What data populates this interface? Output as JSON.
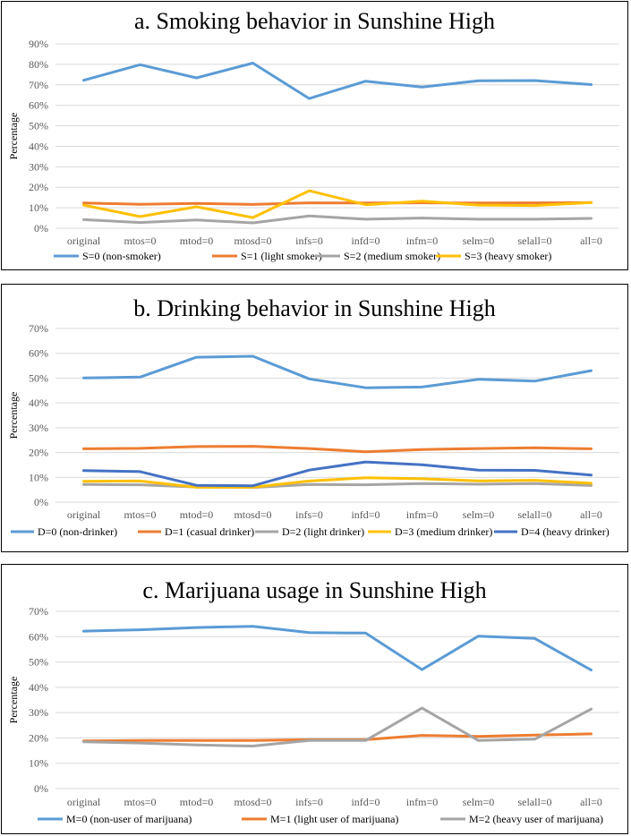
{
  "chart_data": [
    {
      "type": "line",
      "title": "a. Smoking behavior in Sunshine High",
      "xlabel": "",
      "ylabel": "Percentage",
      "ylim": [
        0,
        90
      ],
      "yticks": [
        "0%",
        "10%",
        "20%",
        "30%",
        "40%",
        "50%",
        "60%",
        "70%",
        "80%",
        "90%"
      ],
      "grid": true,
      "legend": "bottom",
      "categories": [
        "original",
        "mtos=0",
        "mtod=0",
        "mtosd=0",
        "infs=0",
        "infd=0",
        "infm=0",
        "selm=0",
        "selall=0",
        "all=0"
      ],
      "series": [
        {
          "name": "S=0 (non-smoker)",
          "color": "#5B9BD5",
          "values": [
            72.2,
            79.8,
            73.4,
            80.6,
            63.3,
            71.8,
            68.9,
            72.0,
            72.1,
            70.1
          ]
        },
        {
          "name": "S=1 (light smoker)",
          "color": "#ED7D31",
          "values": [
            12.3,
            11.7,
            12.1,
            11.6,
            12.4,
            12.3,
            12.4,
            12.3,
            12.4,
            12.5
          ]
        },
        {
          "name": "S=2 (medium smoker)",
          "color": "#A5A5A5",
          "values": [
            4.2,
            2.8,
            4.0,
            2.6,
            6.0,
            4.4,
            5.0,
            4.4,
            4.4,
            4.8
          ]
        },
        {
          "name": "S=3 (heavy smoker)",
          "color": "#FFC000",
          "values": [
            11.3,
            5.7,
            10.5,
            5.2,
            18.3,
            11.5,
            13.2,
            11.3,
            11.1,
            12.6
          ]
        }
      ]
    },
    {
      "type": "line",
      "title": "b. Drinking behavior in Sunshine High",
      "xlabel": "",
      "ylabel": "Percentage",
      "ylim": [
        0,
        70
      ],
      "yticks": [
        "0%",
        "10%",
        "20%",
        "30%",
        "40%",
        "50%",
        "60%",
        "70%"
      ],
      "grid": true,
      "legend": "bottom",
      "categories": [
        "original",
        "mtos=0",
        "mtod=0",
        "mtosd=0",
        "infs=0",
        "infd=0",
        "infm=0",
        "selm=0",
        "selall=0",
        "all=0"
      ],
      "series": [
        {
          "name": "D=0 (non-drinker)",
          "color": "#5B9BD5",
          "values": [
            50.1,
            50.4,
            58.4,
            58.8,
            49.7,
            46.1,
            46.4,
            49.5,
            48.8,
            53.0
          ]
        },
        {
          "name": "D=1 (casual drinker)",
          "color": "#ED7D31",
          "values": [
            21.5,
            21.7,
            22.4,
            22.5,
            21.6,
            20.3,
            21.2,
            21.6,
            21.9,
            21.5
          ]
        },
        {
          "name": "D=2 (light drinker)",
          "color": "#A5A5A5",
          "values": [
            7.1,
            7.0,
            6.1,
            5.9,
            7.1,
            7.0,
            7.5,
            7.2,
            7.5,
            6.7
          ]
        },
        {
          "name": "D=3 (medium drinker)",
          "color": "#FFC000",
          "values": [
            8.4,
            8.5,
            6.0,
            6.0,
            8.5,
            9.8,
            9.4,
            8.6,
            8.8,
            7.6
          ]
        },
        {
          "name": "D=4 (heavy drinker)",
          "color": "#4472C4",
          "values": [
            12.7,
            12.3,
            6.8,
            6.6,
            12.9,
            16.2,
            15.1,
            12.9,
            12.8,
            10.9
          ]
        }
      ]
    },
    {
      "type": "line",
      "title": "c. Marijuana usage in Sunshine High",
      "xlabel": "",
      "ylabel": "Percentage",
      "ylim": [
        0,
        70
      ],
      "yticks": [
        "0%",
        "10%",
        "20%",
        "30%",
        "40%",
        "50%",
        "60%",
        "70%"
      ],
      "grid": true,
      "legend": "bottom",
      "categories": [
        "original",
        "mtos=0",
        "mtod=0",
        "mtosd=0",
        "infs=0",
        "infd=0",
        "infm=0",
        "selm=0",
        "selall=0",
        "all=0"
      ],
      "series": [
        {
          "name": "M=0 (non-user of marijuana)",
          "color": "#5B9BD5",
          "values": [
            62.2,
            62.7,
            63.6,
            64.1,
            61.6,
            61.4,
            47.0,
            60.2,
            59.3,
            46.8
          ]
        },
        {
          "name": "M=1 (light user of marijuana)",
          "color": "#ED7D31",
          "values": [
            18.8,
            19.0,
            19.0,
            19.0,
            19.3,
            19.3,
            21.0,
            20.6,
            21.1,
            21.6
          ]
        },
        {
          "name": "M=2 (heavy user of marijuana)",
          "color": "#A5A5A5",
          "values": [
            18.5,
            18.0,
            17.2,
            16.8,
            19.0,
            19.0,
            31.8,
            19.0,
            19.5,
            31.4
          ]
        }
      ]
    }
  ]
}
